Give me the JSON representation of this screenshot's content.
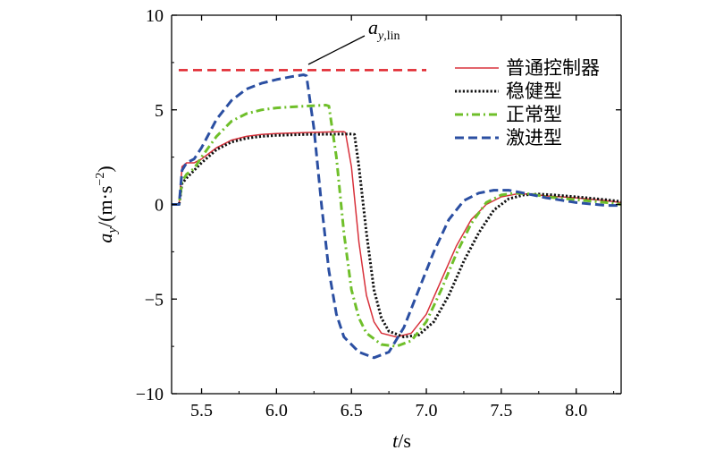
{
  "chart_data": {
    "type": "line",
    "xlabel": "t/s",
    "ylabel": "a_y/(m·s^-2)",
    "xlim": [
      5.3,
      8.3
    ],
    "ylim": [
      -10,
      10
    ],
    "xticks": [
      "5.5",
      "6.0",
      "6.5",
      "7.0",
      "7.5",
      "8.0"
    ],
    "yticks": [
      "10",
      "5",
      "0",
      "−5",
      "−10"
    ],
    "annotation": "a_y,lin",
    "limit_line": {
      "y": 7.1,
      "color": "#e0262e",
      "dash": "dashed"
    },
    "series": [
      {
        "name": "普通控制器",
        "color": "#d8303a",
        "style": "solid",
        "points": [
          [
            5.3,
            0
          ],
          [
            5.35,
            0
          ],
          [
            5.37,
            2.0
          ],
          [
            5.4,
            2.2
          ],
          [
            5.45,
            2.2
          ],
          [
            5.5,
            2.4
          ],
          [
            5.6,
            3.0
          ],
          [
            5.7,
            3.4
          ],
          [
            5.8,
            3.6
          ],
          [
            5.9,
            3.7
          ],
          [
            6.0,
            3.75
          ],
          [
            6.2,
            3.8
          ],
          [
            6.45,
            3.85
          ],
          [
            6.46,
            3.8
          ],
          [
            6.5,
            2.0
          ],
          [
            6.55,
            -2.0
          ],
          [
            6.6,
            -4.8
          ],
          [
            6.65,
            -6.2
          ],
          [
            6.7,
            -6.8
          ],
          [
            6.8,
            -7.0
          ],
          [
            6.9,
            -6.8
          ],
          [
            7.0,
            -5.8
          ],
          [
            7.1,
            -4.0
          ],
          [
            7.2,
            -2.2
          ],
          [
            7.3,
            -0.8
          ],
          [
            7.4,
            0.0
          ],
          [
            7.5,
            0.4
          ],
          [
            7.6,
            0.55
          ],
          [
            7.7,
            0.55
          ],
          [
            7.8,
            0.45
          ],
          [
            8.0,
            0.35
          ],
          [
            8.2,
            0.2
          ],
          [
            8.3,
            0.1
          ]
        ]
      },
      {
        "name": "稳健型",
        "color": "#111111",
        "style": "dotted",
        "points": [
          [
            5.3,
            0
          ],
          [
            5.35,
            0
          ],
          [
            5.37,
            1.1
          ],
          [
            5.4,
            1.4
          ],
          [
            5.5,
            2.2
          ],
          [
            5.6,
            2.9
          ],
          [
            5.7,
            3.3
          ],
          [
            5.8,
            3.5
          ],
          [
            5.9,
            3.6
          ],
          [
            6.0,
            3.65
          ],
          [
            6.2,
            3.7
          ],
          [
            6.5,
            3.72
          ],
          [
            6.52,
            3.7
          ],
          [
            6.55,
            2.0
          ],
          [
            6.6,
            -1.5
          ],
          [
            6.65,
            -4.5
          ],
          [
            6.7,
            -6.0
          ],
          [
            6.75,
            -6.7
          ],
          [
            6.85,
            -7.0
          ],
          [
            6.95,
            -6.9
          ],
          [
            7.05,
            -6.2
          ],
          [
            7.15,
            -4.8
          ],
          [
            7.25,
            -3.0
          ],
          [
            7.35,
            -1.5
          ],
          [
            7.45,
            -0.3
          ],
          [
            7.55,
            0.3
          ],
          [
            7.65,
            0.5
          ],
          [
            7.75,
            0.55
          ],
          [
            7.85,
            0.5
          ],
          [
            8.0,
            0.4
          ],
          [
            8.2,
            0.25
          ],
          [
            8.3,
            0.15
          ]
        ]
      },
      {
        "name": "正常型",
        "color": "#6fbf2a",
        "style": "dashdot",
        "points": [
          [
            5.3,
            0
          ],
          [
            5.35,
            0
          ],
          [
            5.37,
            1.2
          ],
          [
            5.4,
            1.6
          ],
          [
            5.45,
            1.9
          ],
          [
            5.5,
            2.5
          ],
          [
            5.6,
            3.6
          ],
          [
            5.7,
            4.4
          ],
          [
            5.8,
            4.8
          ],
          [
            5.9,
            5.0
          ],
          [
            6.0,
            5.1
          ],
          [
            6.2,
            5.2
          ],
          [
            6.33,
            5.25
          ],
          [
            6.35,
            5.2
          ],
          [
            6.4,
            2.5
          ],
          [
            6.45,
            -1.5
          ],
          [
            6.5,
            -4.5
          ],
          [
            6.55,
            -6.0
          ],
          [
            6.6,
            -6.8
          ],
          [
            6.7,
            -7.4
          ],
          [
            6.8,
            -7.5
          ],
          [
            6.9,
            -7.2
          ],
          [
            7.0,
            -6.2
          ],
          [
            7.1,
            -4.5
          ],
          [
            7.2,
            -2.6
          ],
          [
            7.3,
            -1.0
          ],
          [
            7.4,
            0.1
          ],
          [
            7.5,
            0.5
          ],
          [
            7.6,
            0.6
          ],
          [
            7.7,
            0.55
          ],
          [
            7.8,
            0.4
          ],
          [
            8.0,
            0.25
          ],
          [
            8.2,
            0.1
          ],
          [
            8.3,
            0.0
          ]
        ]
      },
      {
        "name": "激进型",
        "color": "#2b4fa2",
        "style": "dashed",
        "points": [
          [
            5.3,
            0
          ],
          [
            5.35,
            0
          ],
          [
            5.37,
            1.8
          ],
          [
            5.4,
            2.2
          ],
          [
            5.45,
            2.4
          ],
          [
            5.5,
            3.0
          ],
          [
            5.6,
            4.5
          ],
          [
            5.7,
            5.5
          ],
          [
            5.8,
            6.1
          ],
          [
            5.9,
            6.4
          ],
          [
            6.0,
            6.6
          ],
          [
            6.1,
            6.75
          ],
          [
            6.18,
            6.85
          ],
          [
            6.2,
            6.8
          ],
          [
            6.25,
            4.0
          ],
          [
            6.3,
            0.0
          ],
          [
            6.35,
            -3.5
          ],
          [
            6.4,
            -5.8
          ],
          [
            6.45,
            -7.0
          ],
          [
            6.55,
            -7.8
          ],
          [
            6.65,
            -8.1
          ],
          [
            6.75,
            -7.8
          ],
          [
            6.85,
            -6.5
          ],
          [
            6.95,
            -4.5
          ],
          [
            7.05,
            -2.5
          ],
          [
            7.15,
            -0.8
          ],
          [
            7.25,
            0.2
          ],
          [
            7.35,
            0.6
          ],
          [
            7.45,
            0.75
          ],
          [
            7.55,
            0.75
          ],
          [
            7.65,
            0.6
          ],
          [
            7.8,
            0.35
          ],
          [
            8.0,
            0.1
          ],
          [
            8.2,
            -0.05
          ],
          [
            8.3,
            -0.05
          ]
        ]
      }
    ],
    "legend_position": "top-right"
  }
}
